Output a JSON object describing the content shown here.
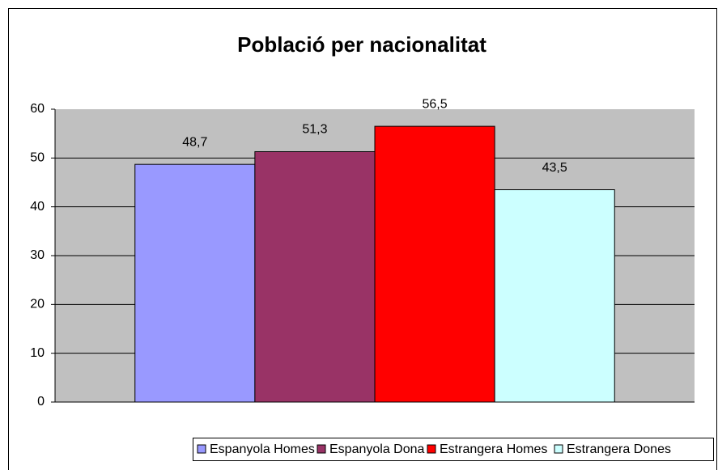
{
  "chart_data": {
    "type": "bar",
    "title": "Població per nacionalitat",
    "categories": [
      null
    ],
    "series": [
      {
        "name": "Espanyola Homes",
        "color": "#9999ff",
        "values": [
          48.7
        ],
        "value_labels": [
          "48,7"
        ]
      },
      {
        "name": "Espanyola Dona",
        "color": "#993366",
        "values": [
          51.3
        ],
        "value_labels": [
          "51,3"
        ]
      },
      {
        "name": "Estrangera Homes",
        "color": "#ff0000",
        "values": [
          56.5
        ],
        "value_labels": [
          "56,5"
        ]
      },
      {
        "name": "Estrangera Dones",
        "color": "#ccffff",
        "values": [
          43.5
        ],
        "value_labels": [
          "43,5"
        ]
      }
    ],
    "ylim": [
      0,
      60
    ],
    "yticks": [
      0,
      10,
      20,
      30,
      40,
      50,
      60
    ],
    "grid": true,
    "legend": "bottom"
  }
}
